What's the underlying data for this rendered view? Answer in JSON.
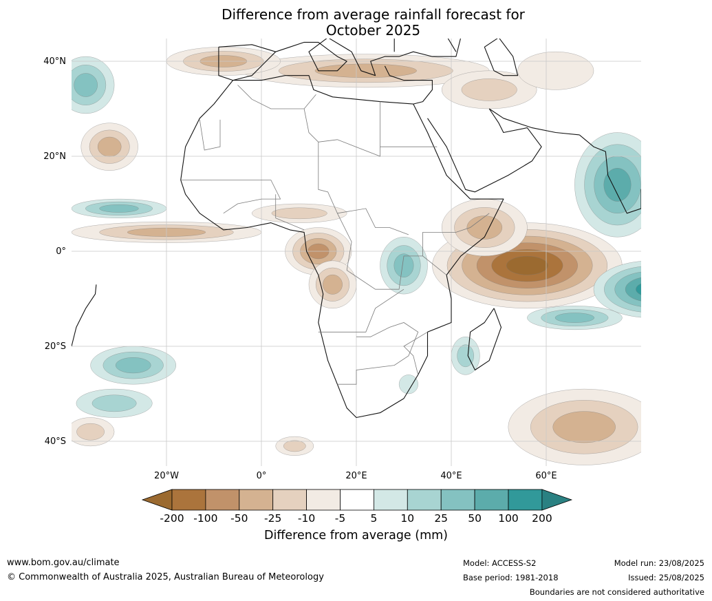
{
  "title": {
    "line1": "Difference from average rainfall forecast for",
    "line2": "October 2025"
  },
  "map": {
    "lat_ticks": [
      "40°N",
      "20°N",
      "0°",
      "20°S",
      "40°S"
    ],
    "lon_ticks": [
      "20°W",
      "0°",
      "20°E",
      "40°E",
      "60°E"
    ],
    "region": "Africa",
    "extent_deg": {
      "lon_min": -40,
      "lon_max": 80,
      "lat_min": -45,
      "lat_max": 45
    },
    "anomaly_regions": [
      {
        "name": "East Africa / western Indian Ocean dry core",
        "center_lon": 58,
        "center_lat": -3,
        "anomaly_mm": "-200 to -100"
      },
      {
        "name": "Gulf of Guinea / Congo dry area",
        "center_lon": 12,
        "center_lat": 0,
        "anomaly_mm": "-100 to -25"
      },
      {
        "name": "Mediterranean / Middle East dry band",
        "center_lon": 20,
        "center_lat": 38,
        "anomaly_mm": "-25 to -10"
      },
      {
        "name": "Arabian Sea / western India wet",
        "center_lon": 75,
        "center_lat": 12,
        "anomaly_mm": "25 to 100"
      },
      {
        "name": "South-west Indian Ocean wet",
        "center_lon": 80,
        "center_lat": -12,
        "anomaly_mm": "50 to 200"
      },
      {
        "name": "Lake Victoria / Tanzania wet",
        "center_lon": 30,
        "center_lat": -3,
        "anomaly_mm": "5 to 25"
      },
      {
        "name": "North Atlantic wet",
        "center_lon": -36,
        "center_lat": 35,
        "anomaly_mm": "10 to 50"
      },
      {
        "name": "South Atlantic wet",
        "center_lon": -30,
        "center_lat": -24,
        "anomaly_mm": "10 to 50"
      },
      {
        "name": "South Indian Ocean dry",
        "center_lon": 70,
        "center_lat": -35,
        "anomaly_mm": "-25 to -10"
      }
    ]
  },
  "colorbar": {
    "ticks": [
      "-200",
      "-100",
      "-50",
      "-25",
      "-10",
      "-5",
      "5",
      "10",
      "25",
      "50",
      "100",
      "200"
    ],
    "colors": [
      "#9b6a30",
      "#ab743c",
      "#c1926a",
      "#d4b291",
      "#e5d1bf",
      "#f2ebe4",
      "#ffffff",
      "#d3e8e6",
      "#a8d4d2",
      "#84c2c1",
      "#5cacab",
      "#31999a",
      "#2a8182"
    ],
    "caption": "Difference from average (mm)"
  },
  "footer": {
    "website": "www.bom.gov.au/climate",
    "copyright": "© Commonwealth of Australia 2025, Australian Bureau of Meteorology",
    "model": "Model: ACCESS-S2",
    "base_period": "Base period: 1981-2018",
    "model_run": "Model run: 23/08/2025",
    "issued": "Issued: 25/08/2025",
    "disclaimer": "Boundaries are not considered authoritative"
  }
}
